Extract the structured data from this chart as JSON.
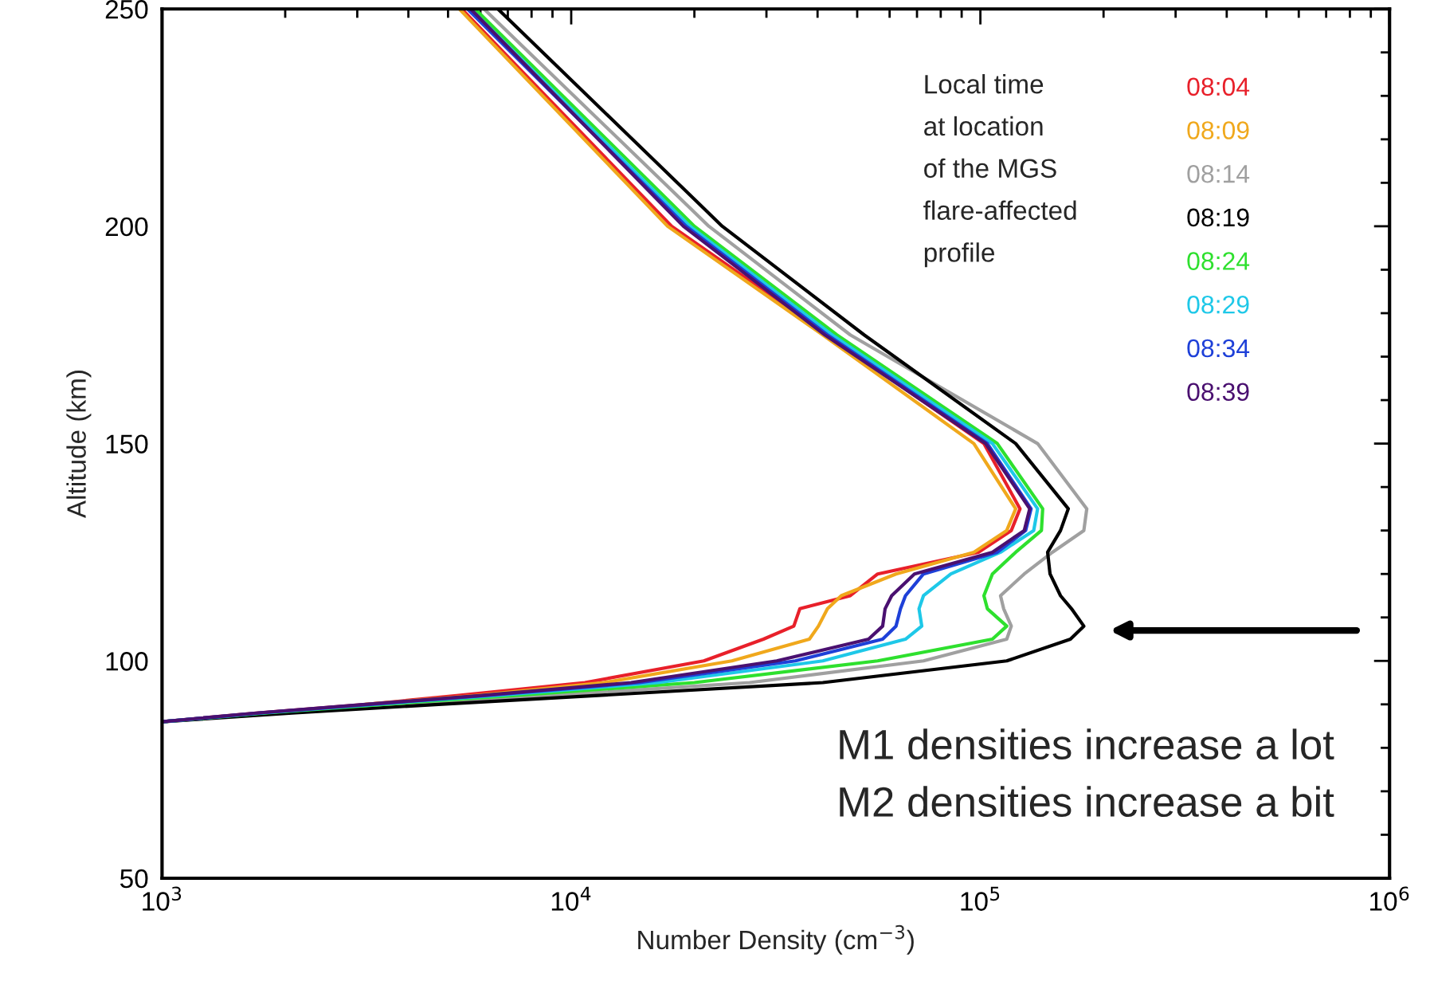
{
  "chart_data": {
    "type": "line",
    "xlabel": "Number Density (cm$^{−3}$)",
    "ylabel": "Altitude (km)",
    "legend_title": "Local time\nat location\nof the MGS\nflare-affected\nprofile",
    "log": "x",
    "xlim": [
      1000,
      1000000
    ],
    "xticks": [
      {
        "value": 1000,
        "label": "10$^{3}$"
      },
      {
        "value": 10000,
        "label": "10$^{4}$"
      },
      {
        "value": 100000,
        "label": "10$^{5}$"
      },
      {
        "value": 1000000,
        "label": "10$^{6}$"
      }
    ],
    "ylim": [
      50,
      250
    ],
    "yticks": [
      50,
      100,
      150,
      200,
      250
    ],
    "grid": false,
    "legend": "top right",
    "annotations": [
      "M1 densities increase a lot",
      "M2 densities increase a bit"
    ],
    "series": [
      {
        "name": "08:04",
        "color": "#e8202a",
        "x": [
          5400,
          17600,
          42300,
          102000,
          125000,
          119000,
          98900,
          56100,
          48100,
          36200,
          35000,
          29500,
          21100,
          10800,
          5250,
          3160,
          1700,
          1000
        ],
        "values": [
          250,
          200,
          175,
          150,
          135,
          130,
          125,
          120,
          115,
          112,
          108,
          105,
          100,
          95,
          92,
          90,
          88,
          86
        ]
      },
      {
        "name": "08:09",
        "color": "#f0a81c",
        "x": [
          5330,
          17200,
          41200,
          96400,
          122000,
          116000,
          96400,
          62200,
          45700,
          42300,
          40200,
          38200,
          24700,
          12000,
          5820,
          3140
        ],
        "values": [
          250,
          200,
          175,
          150,
          135,
          130,
          125,
          120,
          115,
          112,
          108,
          105,
          100,
          95,
          92,
          90
        ]
      },
      {
        "name": "08:14",
        "color": "#a0a0a0",
        "x": [
          6120,
          21700,
          48100,
          138000,
          182000,
          179000,
          150000,
          128000,
          112000,
          114000,
          119000,
          116000,
          72600,
          27300,
          8790,
          4060,
          1870,
          1000
        ],
        "values": [
          250,
          200,
          175,
          150,
          135,
          130,
          125,
          120,
          115,
          112,
          108,
          105,
          100,
          95,
          92,
          90,
          88,
          86
        ]
      },
      {
        "name": "08:19",
        "color": "#000000",
        "x": [
          6620,
          23400,
          52000,
          122000,
          164000,
          157000,
          146000,
          148000,
          157000,
          167000,
          179000,
          166000,
          116000,
          41200,
          11400,
          4740,
          2080,
          1000
        ],
        "values": [
          250,
          200,
          175,
          150,
          135,
          130,
          125,
          120,
          115,
          112,
          108,
          105,
          100,
          95,
          92,
          90,
          88,
          86
        ]
      },
      {
        "name": "08:24",
        "color": "#2ee02e",
        "x": [
          5820,
          20000,
          44600,
          110000,
          142000,
          141000,
          122000,
          107000,
          102000,
          104000,
          116000,
          107000,
          56100,
          20000,
          7160,
          3480,
          1780,
          1000
        ],
        "values": [
          250,
          200,
          175,
          150,
          135,
          130,
          125,
          120,
          115,
          112,
          108,
          105,
          100,
          95,
          92,
          90,
          88,
          86
        ]
      },
      {
        "name": "08:29",
        "color": "#1ec8e8",
        "x": [
          5680,
          19500,
          43400,
          107000,
          138000,
          135000,
          112000,
          84700,
          72600,
          70800,
          71900,
          65600,
          41200,
          16300,
          6460,
          3300,
          1740,
          1000
        ],
        "values": [
          250,
          200,
          175,
          150,
          135,
          130,
          125,
          120,
          115,
          112,
          108,
          105,
          100,
          95,
          92,
          90,
          88,
          86
        ]
      },
      {
        "name": "08:34",
        "color": "#1e40d8",
        "x": [
          5580,
          19100,
          42300,
          104000,
          133000,
          129000,
          110000,
          72600,
          65600,
          63800,
          62200,
          57700,
          35300,
          14700,
          6120,
          3220,
          1720,
          1000
        ],
        "values": [
          250,
          200,
          175,
          150,
          135,
          130,
          125,
          120,
          115,
          112,
          108,
          105,
          100,
          95,
          92,
          90,
          88,
          86
        ]
      },
      {
        "name": "08:39",
        "color": "#4a1070",
        "x": [
          5680,
          18800,
          41700,
          103000,
          132000,
          128000,
          107000,
          69000,
          60700,
          58500,
          57700,
          53300,
          31800,
          14000,
          5970,
          3140,
          1700,
          1000
        ],
        "values": [
          250,
          200,
          175,
          150,
          135,
          130,
          125,
          120,
          115,
          112,
          108,
          105,
          100,
          95,
          92,
          90,
          88,
          86
        ]
      }
    ]
  }
}
